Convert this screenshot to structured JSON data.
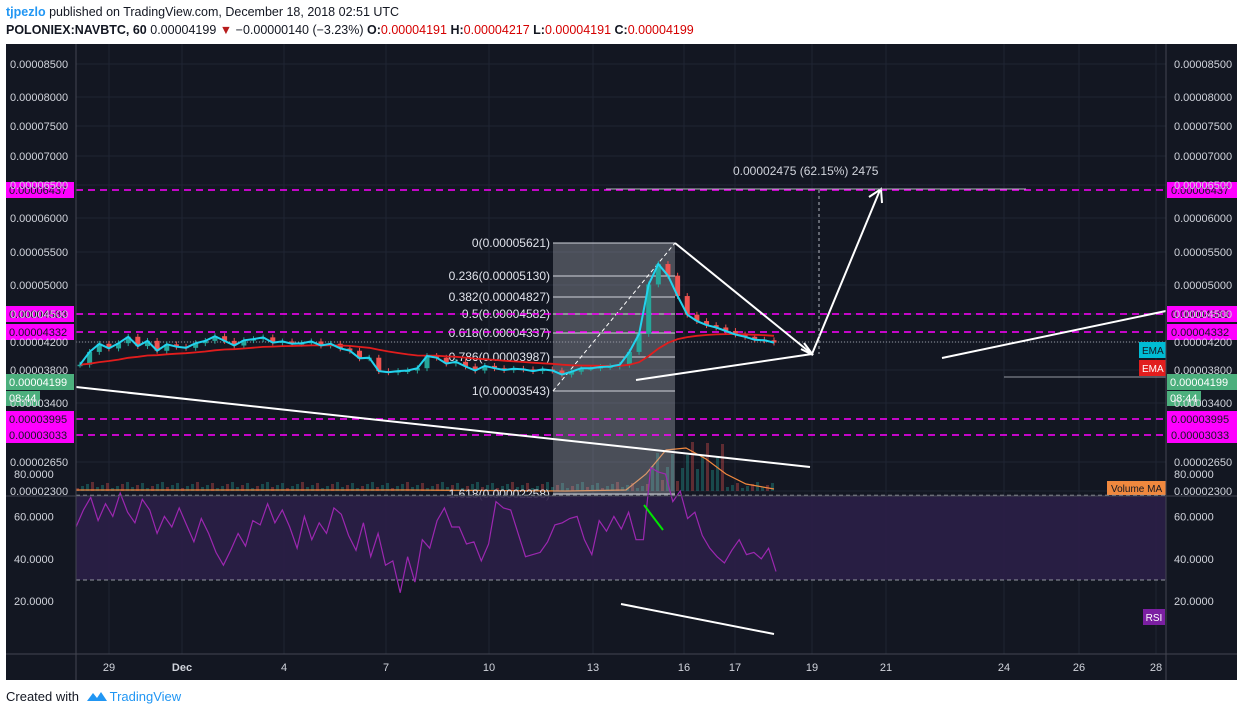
{
  "header": {
    "author": "tjpezlo",
    "published": "published on TradingView.com, December 18, 2018 02:51 UTC",
    "symbol": "POLONIEX:NAVBTC, 60",
    "last": "0.00004199",
    "change": "−0.00000140 (−3.23%)",
    "o_label": "O:",
    "o_value": "0.00004191",
    "h_label": "H:",
    "h_value": "0.00004217",
    "l_label": "L:",
    "l_value": "0.00004191",
    "c_label": "C:",
    "c_value": "0.00004199"
  },
  "footer": {
    "created": "Created with",
    "brand": "TradingView"
  },
  "colors": {
    "background": "#131722",
    "candle_up": "#26a69a",
    "candle_down": "#ef5350",
    "ema_fast": "#22d3ee",
    "ema_slow": "#e11d1d",
    "level_magenta": "#ff00ff",
    "rsi": "#9c27b0",
    "volume_ma": "#f0883e",
    "drawing": "#ffffff"
  },
  "chart_data": [
    {
      "type": "candlestick",
      "panel": "price",
      "title": "POLONIEX:NAVBTC, 60",
      "x_ticks": [
        "29",
        "Dec",
        "4",
        "7",
        "10",
        "13",
        "16",
        "17",
        "19",
        "21",
        "24",
        "26",
        "28"
      ],
      "y_ticks": [
        "0.00008500",
        "0.00008000",
        "0.00007500",
        "0.00007000",
        "0.00006500",
        "0.00006000",
        "0.00005500",
        "0.00005000",
        "0.00004500",
        "0.00004200",
        "0.00003800",
        "0.00003400",
        "0.00002650",
        "0.00002300"
      ],
      "levels": [
        {
          "label": "0.00006437",
          "color": "#ff00ff",
          "style": "dashed"
        },
        {
          "label": "0.00004583",
          "color": "#ff00ff",
          "style": "dashed"
        },
        {
          "label": "0.00004332",
          "color": "#ff00ff",
          "style": "dashed"
        },
        {
          "label": "0.00003995",
          "color": "#ff00ff",
          "style": "dashed"
        },
        {
          "label": "0.00003033",
          "color": "#ff00ff",
          "style": "dashed"
        }
      ],
      "last_price": {
        "label": "0.00004199",
        "countdown": "08:44"
      },
      "fibonacci": [
        {
          "ratio": "0",
          "label": "0(0.00005621)"
        },
        {
          "ratio": "0.236",
          "label": "0.236(0.00005130)"
        },
        {
          "ratio": "0.382",
          "label": "0.382(0.00004827)"
        },
        {
          "ratio": "0.5",
          "label": "0.5(0.00004582)"
        },
        {
          "ratio": "0.618",
          "label": "0.618(0.00004337)"
        },
        {
          "ratio": "0.786",
          "label": "0.786(0.00003987)"
        },
        {
          "ratio": "1",
          "label": "1(0.00003543)"
        },
        {
          "ratio": "1.618",
          "label": "1.618(0.00002258)"
        }
      ],
      "projection_label": "0.00002475 (62.15%) 2475",
      "indicator_tags": [
        "EMA",
        "EMA",
        "Volume MA"
      ],
      "price_series": [
        38.2,
        40.4,
        41.8,
        41.0,
        41.9,
        43.0,
        41.4,
        42.3,
        40.6,
        41.7,
        41.3,
        41.1,
        41.9,
        42.3,
        43.1,
        42.3,
        41.5,
        42.4,
        42.6,
        42.9,
        42.0,
        42.2,
        41.8,
        41.9,
        42.2,
        41.5,
        41.8,
        41.0,
        40.6,
        39.3,
        39.4,
        37.1,
        36.9,
        37.1,
        37.2,
        37.6,
        39.7,
        39.4,
        38.4,
        38.7,
        37.9,
        37.2,
        38.0,
        37.6,
        37.3,
        37.5,
        37.4,
        37.1,
        37.4,
        37.2,
        36.5,
        37.0,
        37.6,
        37.6,
        37.8,
        37.9,
        38.2,
        40.4,
        43.5,
        52.0,
        55.5,
        53.5,
        50.0,
        46.8,
        45.7,
        45.0,
        44.6,
        44.0,
        43.4,
        43.0,
        42.5,
        42.4,
        42.0
      ]
    },
    {
      "type": "line",
      "panel": "rsi",
      "title": "RSI",
      "y_ticks": [
        "80.0000",
        "60.0000",
        "40.0000",
        "20.0000"
      ],
      "ylim": [
        17,
        92
      ],
      "bands": [
        30,
        70
      ],
      "values": [
        55,
        63,
        69,
        58,
        66,
        60,
        71,
        62,
        57,
        68,
        63,
        52,
        60,
        55,
        64,
        56,
        48,
        59,
        52,
        43,
        37,
        44,
        52,
        46,
        58,
        56,
        66,
        57,
        63,
        55,
        45,
        60,
        49,
        57,
        52,
        64,
        61,
        51,
        44,
        57,
        41,
        52,
        37,
        39,
        24,
        41,
        29,
        49,
        45,
        58,
        64,
        55,
        55,
        47,
        48,
        39,
        47,
        67,
        64,
        63,
        52,
        41,
        42,
        43,
        48,
        56,
        57,
        59,
        60,
        49,
        42,
        58,
        53,
        60,
        54,
        62,
        49,
        49,
        83,
        81,
        80,
        67,
        72,
        59,
        62,
        51,
        45,
        41,
        38,
        44,
        49,
        42,
        43,
        40,
        45,
        34
      ]
    }
  ]
}
